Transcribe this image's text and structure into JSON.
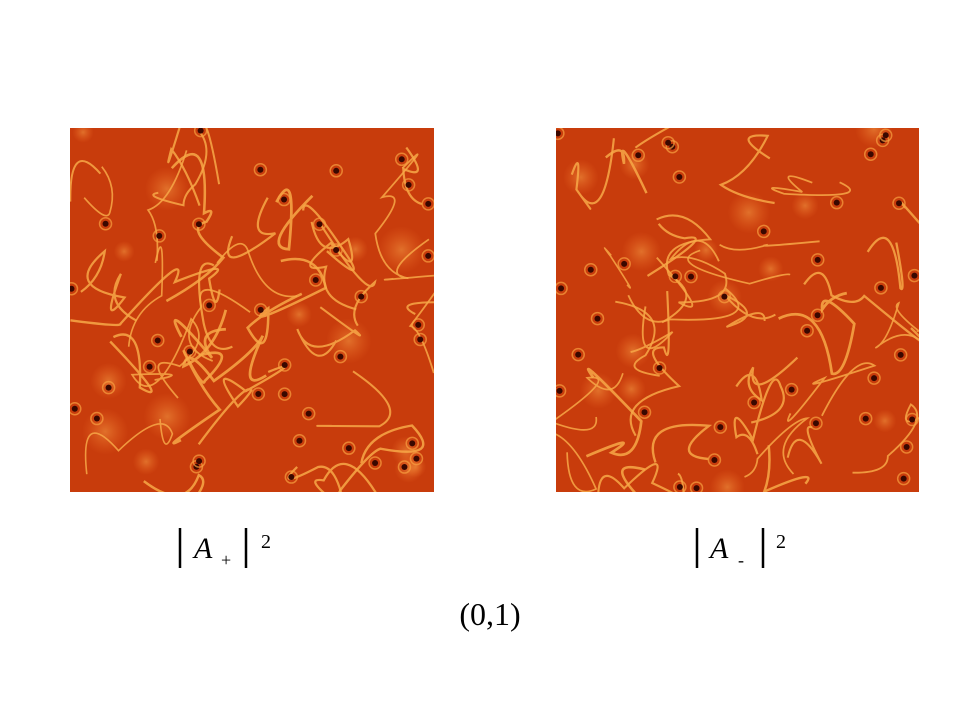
{
  "panels": [
    {
      "label": {
        "symbol": "A",
        "subscript": "+",
        "superscript": "2"
      }
    },
    {
      "label": {
        "symbol": "A",
        "subscript": "-",
        "superscript": "2"
      }
    }
  ],
  "caption": "(0,1)"
}
